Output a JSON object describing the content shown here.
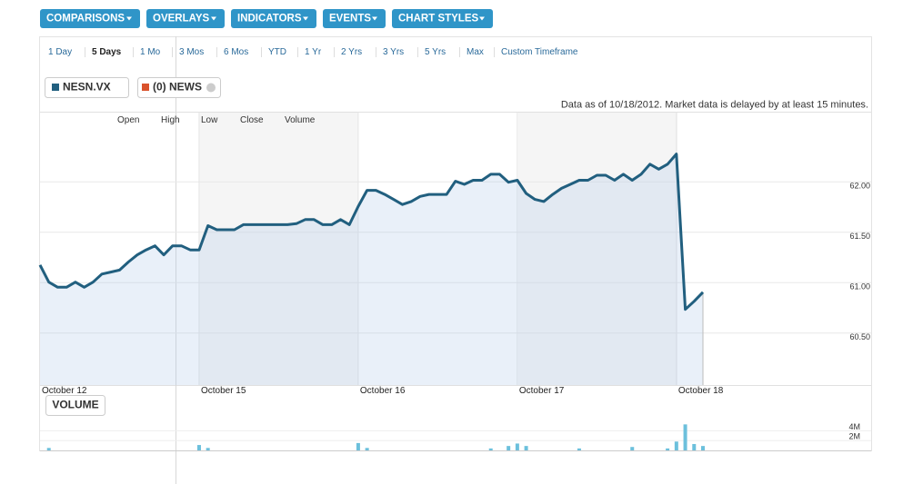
{
  "toolbar": [
    "COMPARISONS",
    "OVERLAYS",
    "INDICATORS",
    "EVENTS",
    "CHART STYLES"
  ],
  "ranges": [
    "1 Day",
    "5 Days",
    "1 Mo",
    "3 Mos",
    "6 Mos",
    "YTD",
    "1 Yr",
    "2 Yrs",
    "3 Yrs",
    "5 Yrs",
    "Max",
    "Custom Timeframe"
  ],
  "active_range": "5 Days",
  "legend_news": "(0) NEWS",
  "note": "Data as of 10/18/2012. Market data is delayed by at least 15 minutes.",
  "hover_fields": [
    "Open",
    "High",
    "Low",
    "Close",
    "Volume"
  ],
  "chart_data": [
    {
      "type": "line",
      "categories": [
        "October 12",
        null,
        null,
        null,
        null,
        null,
        null,
        null,
        null,
        null,
        null,
        null,
        null,
        null,
        null,
        null,
        null,
        null,
        "October 15",
        null,
        null,
        null,
        null,
        null,
        null,
        null,
        null,
        null,
        null,
        null,
        null,
        null,
        null,
        null,
        null,
        null,
        "October 16",
        null,
        null,
        null,
        null,
        null,
        null,
        null,
        null,
        null,
        null,
        null,
        null,
        null,
        null,
        null,
        null,
        null,
        "October 17",
        null,
        null,
        null,
        null,
        null,
        null,
        null,
        null,
        null,
        null,
        null,
        null,
        null,
        null,
        null,
        null,
        null,
        "October 18",
        null,
        null,
        null
      ],
      "series": [
        {
          "name": "NESN.VX",
          "color": "#215f7f",
          "values": [
            61.22,
            61.05,
            61.0,
            61.0,
            61.05,
            61.0,
            61.05,
            61.13,
            61.15,
            61.17,
            61.25,
            61.32,
            61.37,
            61.41,
            61.32,
            61.41,
            61.41,
            61.37,
            61.37,
            61.61,
            61.57,
            61.57,
            61.57,
            61.62,
            61.62,
            61.62,
            61.62,
            61.62,
            61.62,
            61.63,
            61.67,
            61.67,
            61.62,
            61.62,
            61.67,
            61.62,
            61.8,
            61.96,
            61.96,
            61.92,
            61.87,
            61.82,
            61.85,
            61.9,
            61.92,
            61.92,
            61.92,
            62.05,
            62.02,
            62.06,
            62.06,
            62.12,
            62.12,
            62.04,
            62.06,
            61.93,
            61.87,
            61.85,
            61.92,
            61.98,
            62.02,
            62.06,
            62.06,
            62.11,
            62.11,
            62.06,
            62.12,
            62.06,
            62.12,
            62.22,
            62.17,
            62.22,
            62.32,
            60.78,
            60.86,
            60.95
          ]
        }
      ],
      "ylim": [
        60.03,
        62.74
      ],
      "yticks": [
        {
          "value": 60.5,
          "label": "60.50"
        },
        {
          "value": 61,
          "label": "61.00"
        },
        {
          "value": 61.5,
          "label": "61.50"
        },
        {
          "value": 62,
          "label": "62.00"
        }
      ],
      "grid": true
    },
    {
      "type": "bar",
      "title": "VOLUME",
      "color": "#6cc0dc",
      "values": [
        null,
        500000,
        null,
        null,
        null,
        null,
        null,
        null,
        null,
        null,
        null,
        null,
        null,
        null,
        null,
        null,
        null,
        null,
        1100000,
        500000,
        null,
        null,
        null,
        null,
        null,
        null,
        null,
        null,
        null,
        null,
        null,
        null,
        null,
        null,
        null,
        null,
        1500000,
        500000,
        null,
        null,
        null,
        null,
        null,
        null,
        null,
        null,
        null,
        null,
        null,
        null,
        null,
        400000,
        null,
        900000,
        1400000,
        900000,
        null,
        null,
        null,
        null,
        null,
        400000,
        null,
        null,
        null,
        null,
        null,
        700000,
        null,
        null,
        null,
        400000,
        1800000,
        5300000,
        1300000,
        900000
      ],
      "ylim": [
        0,
        7400000
      ],
      "yticks": [
        {
          "value": 2000000,
          "label": "2M"
        },
        {
          "value": 4000000,
          "label": "4M"
        }
      ],
      "grid": true
    }
  ]
}
